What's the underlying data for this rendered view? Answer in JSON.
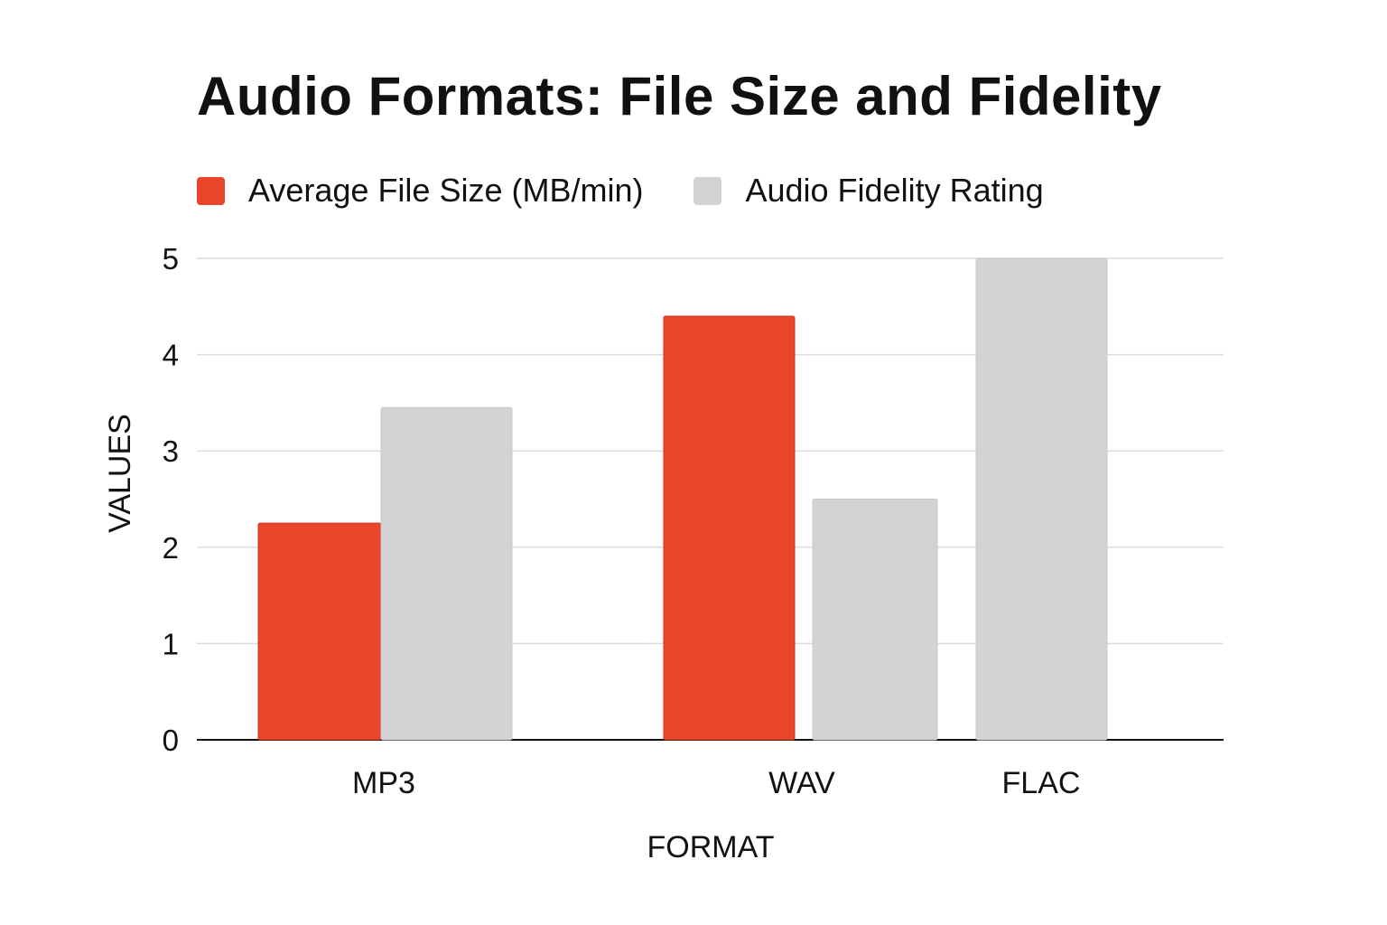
{
  "chart_data": {
    "type": "bar",
    "title": "Audio Formats: File Size and Fidelity",
    "xlabel": "FORMAT",
    "ylabel": "VALUES",
    "categories": [
      "MP3",
      "WAV",
      "FLAC"
    ],
    "series": [
      {
        "name": "Average File Size (MB/min)",
        "color": "#E8452A",
        "values": [
          2.25,
          4.4,
          0
        ]
      },
      {
        "name": "Audio Fidelity Rating",
        "color": "#D3D3D6",
        "values": [
          3.45,
          2.5,
          5
        ]
      }
    ],
    "ylim": [
      0,
      5
    ],
    "yticks": [
      "0",
      "1",
      "2",
      "3",
      "4",
      "5"
    ],
    "grid": true,
    "legend_position": "top-left"
  }
}
